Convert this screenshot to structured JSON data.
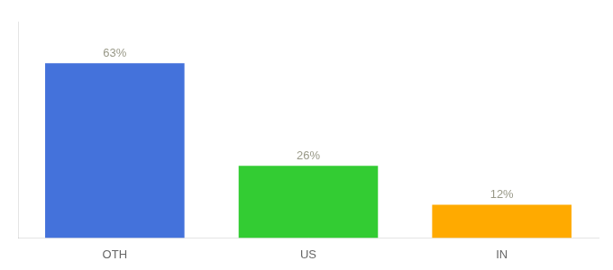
{
  "chart_data": {
    "type": "bar",
    "categories": [
      "OTH",
      "US",
      "IN"
    ],
    "values": [
      63,
      26,
      12
    ],
    "value_labels": [
      "63%",
      "26%",
      "12%"
    ],
    "data_labels": true,
    "colors": [
      "#4472db",
      "#33cc33",
      "#ffaa00"
    ],
    "ylim": [
      0,
      78
    ],
    "grid": false,
    "tick_labels": "x"
  }
}
